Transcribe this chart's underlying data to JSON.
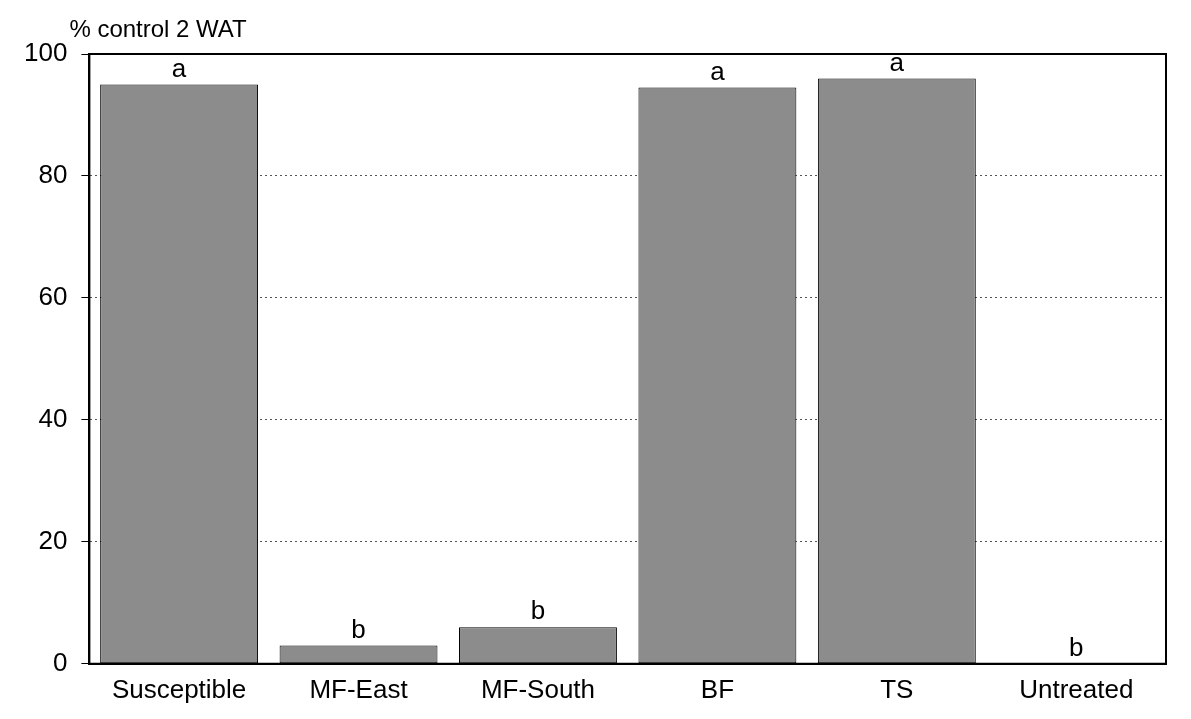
{
  "chart_data": {
    "type": "bar",
    "ylabel": "% control 2 WAT",
    "categories": [
      "Susceptible",
      "MF-East",
      "MF-South",
      "BF",
      "TS",
      "Untreated"
    ],
    "values": [
      95,
      3,
      6,
      94.5,
      96,
      0
    ],
    "value_labels": [
      "a",
      "b",
      "b",
      "a",
      "a",
      "b"
    ],
    "color": "#8c8c8c",
    "ylim": [
      0,
      100
    ],
    "yticks": [
      0,
      20,
      40,
      60,
      80,
      100
    ],
    "grid": "y",
    "legend": false
  }
}
